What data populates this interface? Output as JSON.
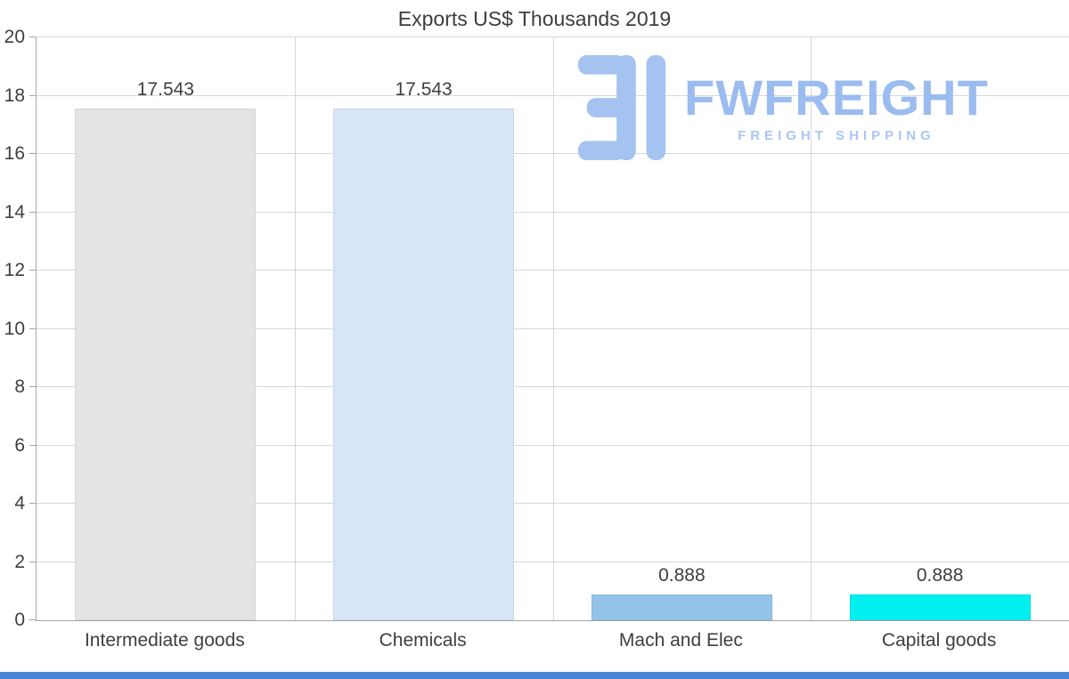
{
  "chart_data": {
    "type": "bar",
    "title": "Exports US$ Thousands 2019",
    "categories": [
      "Intermediate goods",
      "Chemicals",
      "Mach and Elec",
      "Capital goods"
    ],
    "values": [
      17.543,
      17.543,
      0.888,
      0.888
    ],
    "value_labels": [
      "17.543",
      "17.543",
      "0.888",
      "0.888"
    ],
    "bar_colors": [
      "#e4e4e4",
      "#d6e6f7",
      "#93c3e8",
      "#00f0f0"
    ],
    "ylim": [
      0,
      20
    ],
    "yticks": [
      0,
      2,
      4,
      6,
      8,
      10,
      12,
      14,
      16,
      18,
      20
    ],
    "xlabel": "",
    "ylabel": "",
    "grid": true,
    "legend": false
  },
  "logo": {
    "wordmark": "FWFREIGHT",
    "tagline": "FREIGHT SHIPPING",
    "color": "#9bbcf0",
    "tagline_color": "#aac6f2",
    "mark_color": "#a4c3f0"
  },
  "colors": {
    "grid": "#d8d8d8",
    "axis": "#a6a6a6",
    "text": "#3f3f3f",
    "footer_bar": "#4a86d8",
    "background": "#ffffff"
  }
}
